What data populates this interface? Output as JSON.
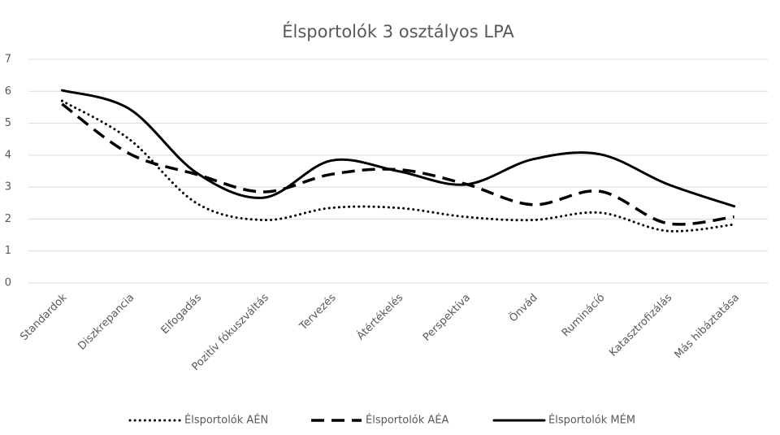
{
  "chart_data": {
    "type": "line",
    "title": "Élsportolók 3 osztályos LPA",
    "categories": [
      "Standardok",
      "Diszkrepancia",
      "Elfogadás",
      "Pozitív fókuszváltás",
      "Tervezés",
      "Átértékelés",
      "Perspektíva",
      "Önvád",
      "Ruminácíó",
      "Katasztrofizálás",
      "Más hibáztatása"
    ],
    "series": [
      {
        "name": "Élsportolók AÉN",
        "color": "#000000",
        "dash": "dotted",
        "values": [
          5.7,
          4.5,
          2.5,
          1.97,
          2.35,
          2.35,
          2.07,
          1.97,
          2.2,
          1.63,
          1.83
        ]
      },
      {
        "name": "Élsportolók AÉA",
        "color": "#000000",
        "dash": "dashed",
        "values": [
          5.6,
          4.05,
          3.4,
          2.85,
          3.4,
          3.55,
          3.1,
          2.45,
          2.87,
          1.87,
          2.07
        ]
      },
      {
        "name": "Élsportolók MÉM",
        "color": "#000000",
        "dash": "solid",
        "values": [
          6.03,
          5.45,
          3.45,
          2.67,
          3.83,
          3.5,
          3.08,
          3.87,
          4.03,
          3.1,
          2.4
        ]
      }
    ],
    "ylim": [
      0,
      7
    ],
    "yticks": [
      0,
      1,
      2,
      3,
      4,
      5,
      6,
      7
    ],
    "grid": true,
    "legend": "bottom"
  }
}
